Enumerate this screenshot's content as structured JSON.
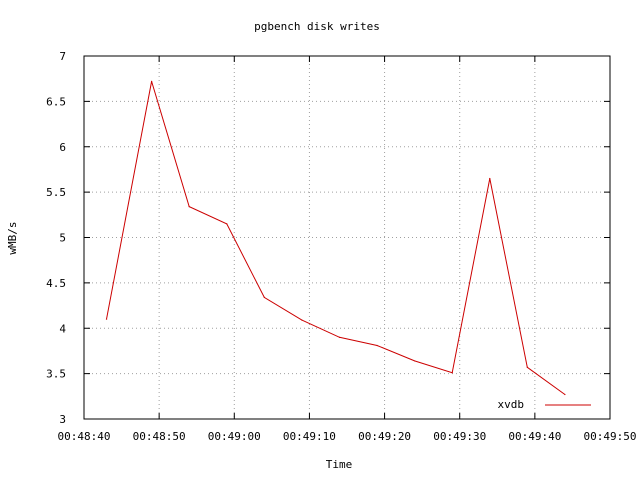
{
  "chart_data": {
    "type": "line",
    "title": "pgbench disk writes",
    "xlabel": "Time",
    "ylabel": "wMB/s",
    "xlim": [
      "00:48:40",
      "00:49:50"
    ],
    "ylim": [
      3,
      7
    ],
    "x_ticks": [
      "00:48:40",
      "00:48:50",
      "00:49:00",
      "00:49:10",
      "00:49:20",
      "00:49:30",
      "00:49:40",
      "00:49:50"
    ],
    "y_ticks": [
      "3",
      "3.5",
      "4",
      "4.5",
      "5",
      "5.5",
      "6",
      "6.5",
      "7"
    ],
    "grid": true,
    "legend_position": "bottom-right",
    "series": [
      {
        "name": "xvdb",
        "color": "#cc0000",
        "x": [
          "00:48:43",
          "00:48:49",
          "00:48:54",
          "00:48:59",
          "00:49:04",
          "00:49:09",
          "00:49:14",
          "00:49:19",
          "00:49:24",
          "00:49:29",
          "00:49:34",
          "00:49:39",
          "00:49:44"
        ],
        "y": [
          4.1,
          6.72,
          5.34,
          5.15,
          4.34,
          4.09,
          3.9,
          3.81,
          3.64,
          3.51,
          5.65,
          3.57,
          3.27
        ]
      }
    ]
  }
}
